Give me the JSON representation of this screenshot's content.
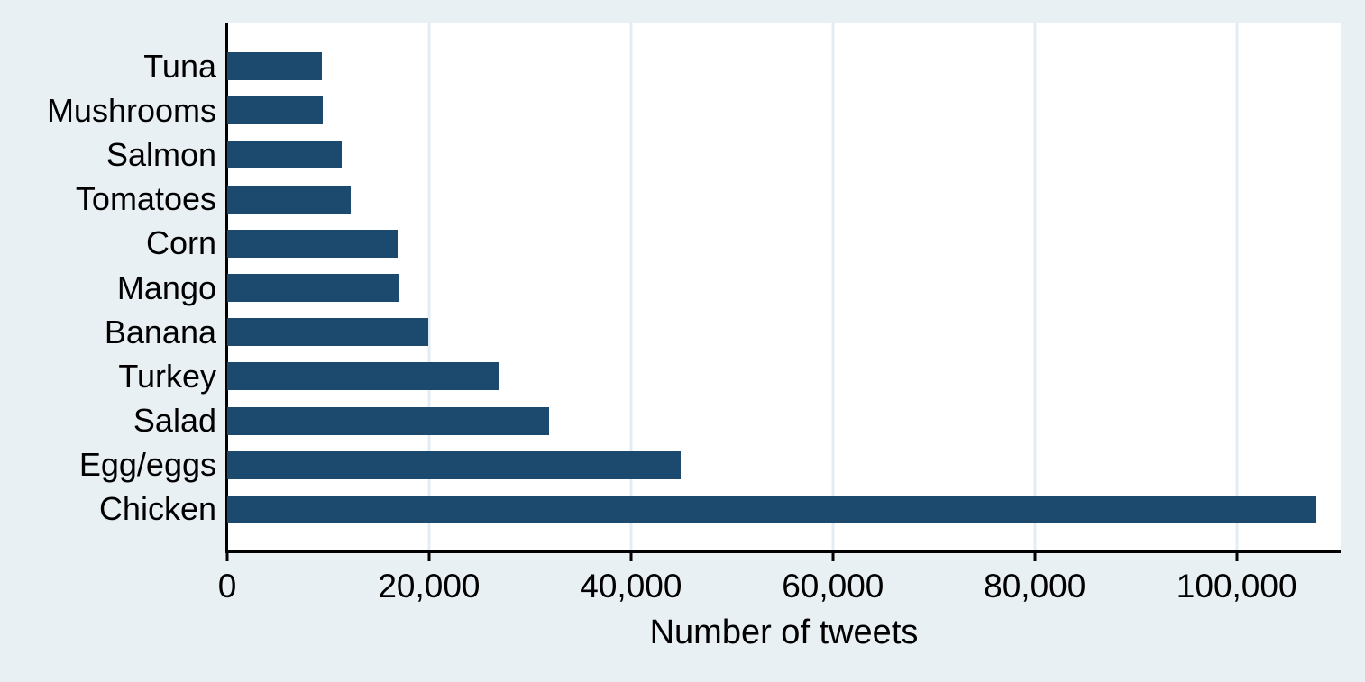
{
  "style": {
    "background_color": "#E9F0F3",
    "plot_background_color": "#FFFFFF",
    "bar_color": "#1C4A6E",
    "gridline_color": "#E2ECF5",
    "axis_color": "#000000",
    "text_color": "#000000"
  },
  "chart_data": {
    "type": "bar",
    "orientation": "horizontal",
    "title": "",
    "xlabel": "Number of tweets",
    "ylabel": "",
    "categories": [
      "Tuna",
      "Mushrooms",
      "Salmon",
      "Tomatoes",
      "Corn",
      "Mango",
      "Banana",
      "Turkey",
      "Salad",
      "Egg/eggs",
      "Chicken"
    ],
    "values": [
      9400,
      9500,
      11300,
      12200,
      16900,
      17000,
      19900,
      27000,
      31900,
      44900,
      107900
    ],
    "xlim": [
      0,
      110300
    ],
    "x_ticks": [
      0,
      20000,
      40000,
      60000,
      80000,
      100000
    ],
    "x_tick_labels": [
      "0",
      "20,000",
      "40,000",
      "60,000",
      "80,000",
      "100,000"
    ],
    "grid": "vertical-gridlines-at-x-ticks",
    "legend": "none"
  }
}
